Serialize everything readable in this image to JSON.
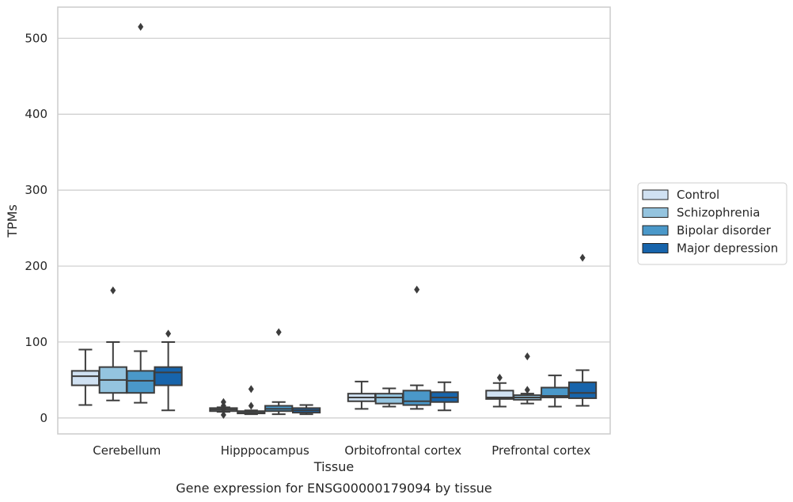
{
  "chart_data": {
    "type": "box",
    "title": "",
    "caption": "Gene expression for ENSG00000179094 by tissue",
    "xlabel": "Tissue",
    "ylabel": "TPMs",
    "ylim": [
      -21,
      541
    ],
    "yticks": [
      0,
      100,
      200,
      300,
      400,
      500
    ],
    "grid": "horizontal",
    "legend_position": "right",
    "categories": [
      "Cerebellum",
      "Hipppocampus",
      "Orbitofrontal cortex",
      "Prefrontal cortex"
    ],
    "series": [
      {
        "name": "Control",
        "color": "#d0e1f2",
        "boxes": [
          {
            "whislo": 17,
            "q1": 43,
            "med": 55,
            "q3": 62,
            "whishi": 90,
            "fliers": []
          },
          {
            "whislo": 8,
            "q1": 9,
            "med": 11,
            "q3": 13,
            "whishi": 14,
            "fliers": [
              4,
              12,
              16,
              21
            ]
          },
          {
            "whislo": 12,
            "q1": 22,
            "med": 27,
            "q3": 32,
            "whishi": 48,
            "fliers": []
          },
          {
            "whislo": 15,
            "q1": 25,
            "med": 27,
            "q3": 36,
            "whishi": 46,
            "fliers": [
              53
            ]
          }
        ]
      },
      {
        "name": "Schizophrenia",
        "color": "#94c4df",
        "boxes": [
          {
            "whislo": 23,
            "q1": 33,
            "med": 50,
            "q3": 67,
            "whishi": 100,
            "fliers": [
              168
            ]
          },
          {
            "whislo": 5,
            "q1": 6,
            "med": 7,
            "q3": 9,
            "whishi": 10,
            "fliers": [
              16,
              38
            ]
          },
          {
            "whislo": 15,
            "q1": 19,
            "med": 27,
            "q3": 32,
            "whishi": 39,
            "fliers": []
          },
          {
            "whislo": 19,
            "q1": 24,
            "med": 27,
            "q3": 30,
            "whishi": 32,
            "fliers": [
              37,
              81
            ]
          }
        ]
      },
      {
        "name": "Bipolar disorder",
        "color": "#4a98c9",
        "boxes": [
          {
            "whislo": 20,
            "q1": 33,
            "med": 49,
            "q3": 62,
            "whishi": 88,
            "fliers": [
              515
            ]
          },
          {
            "whislo": 5,
            "q1": 9,
            "med": 12,
            "q3": 16,
            "whishi": 21,
            "fliers": [
              113
            ]
          },
          {
            "whislo": 12,
            "q1": 17,
            "med": 22,
            "q3": 36,
            "whishi": 43,
            "fliers": [
              169
            ]
          },
          {
            "whislo": 15,
            "q1": 27,
            "med": 29,
            "q3": 40,
            "whishi": 56,
            "fliers": []
          }
        ]
      },
      {
        "name": "Major depression",
        "color": "#1764ab",
        "boxes": [
          {
            "whislo": 10,
            "q1": 43,
            "med": 60,
            "q3": 67,
            "whishi": 100,
            "fliers": [
              111
            ]
          },
          {
            "whislo": 5,
            "q1": 7,
            "med": 10,
            "q3": 13,
            "whishi": 17,
            "fliers": []
          },
          {
            "whislo": 10,
            "q1": 21,
            "med": 27,
            "q3": 34,
            "whishi": 47,
            "fliers": []
          },
          {
            "whislo": 16,
            "q1": 26,
            "med": 33,
            "q3": 47,
            "whishi": 63,
            "fliers": [
              211
            ]
          }
        ]
      }
    ]
  }
}
